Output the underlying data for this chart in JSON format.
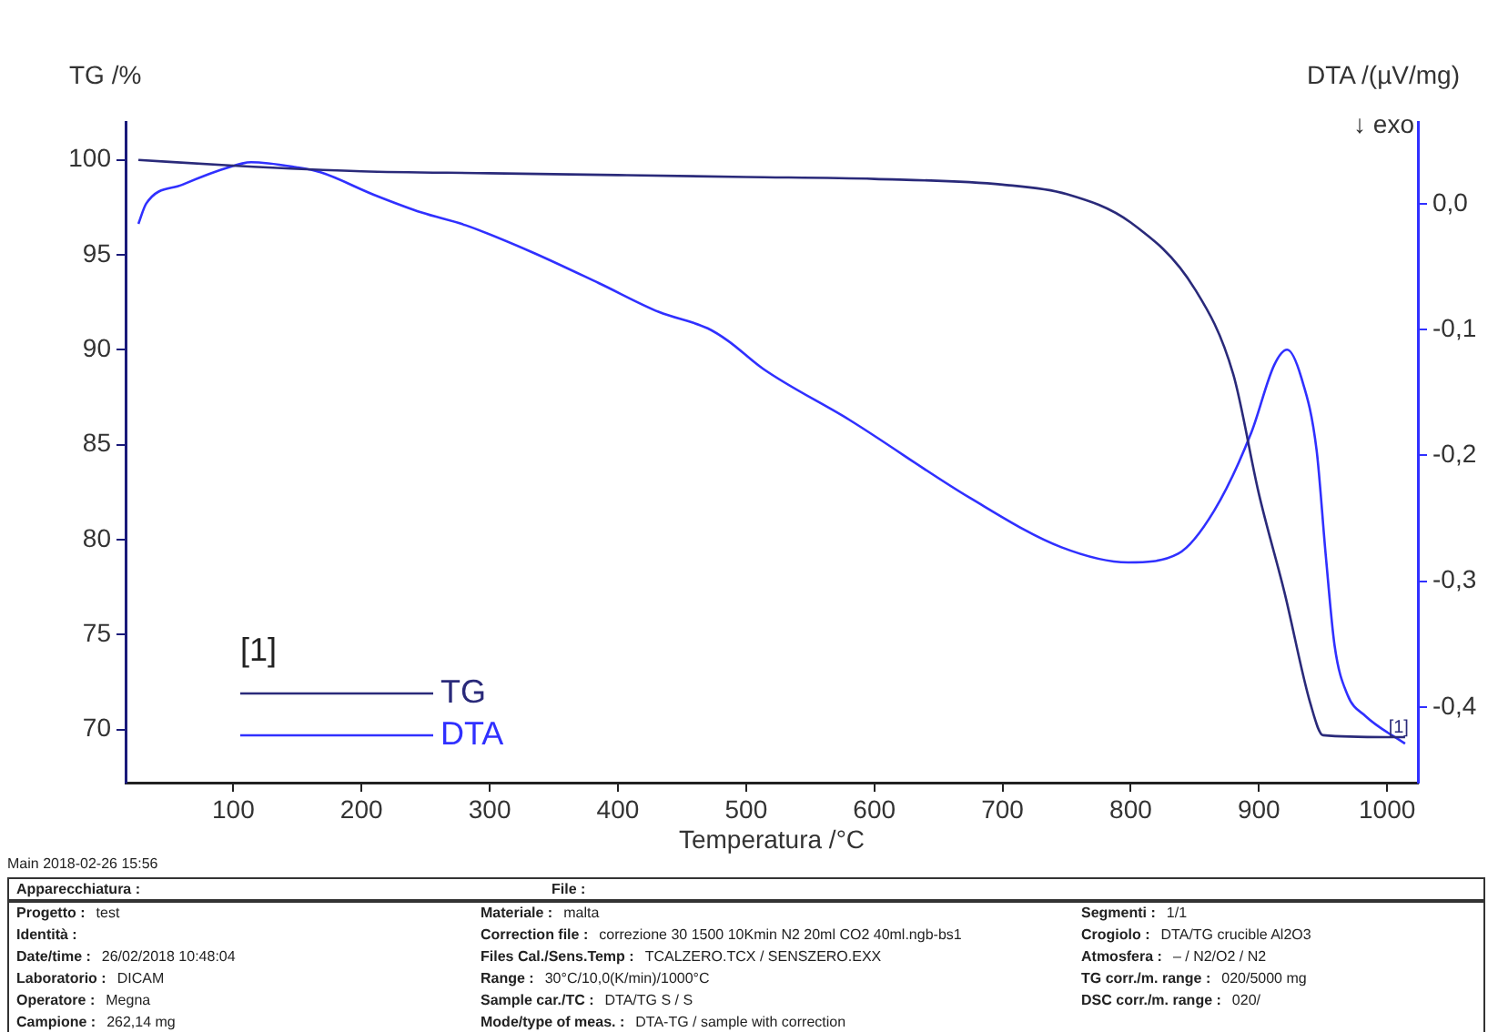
{
  "chart_data": {
    "type": "line",
    "xlabel": "Temperatura /°C",
    "ylabel": "TG /%",
    "y2label": "DTA /(µV/mg)",
    "legend_title": "[1]",
    "legend": "bottom left",
    "marker": "none",
    "line_style": "solid",
    "xlim": [
      16,
      1024
    ],
    "xticks": [
      100,
      200,
      300,
      400,
      500,
      600,
      700,
      800,
      900,
      1000
    ],
    "ylim": [
      67.2,
      102
    ],
    "yticks": [
      70,
      75,
      80,
      85,
      90,
      95,
      100
    ],
    "y2lim": [
      -0.46,
      0.065
    ],
    "y2ticks": [
      {
        "value": -0.4,
        "label": "-0,4"
      },
      {
        "value": -0.3,
        "label": "-0,3"
      },
      {
        "value": -0.2,
        "label": "-0,2"
      },
      {
        "value": -0.1,
        "label": "-0,1"
      },
      {
        "value": 0,
        "label": "0,0"
      }
    ],
    "series": [
      {
        "name": "TG",
        "color": "#2a2a7a",
        "x": [
          26,
          100,
          200,
          300,
          400,
          500,
          600,
          700,
          750,
          800,
          850,
          880,
          900,
          920,
          940,
          950,
          1000,
          1014
        ],
        "values": [
          100,
          99.7,
          99.4,
          99.3,
          99.2,
          99.1,
          99.0,
          98.7,
          98.2,
          96.7,
          93.2,
          88.7,
          82.4,
          77.2,
          71.4,
          69.7,
          69.6,
          69.6
        ]
      },
      {
        "name": "DTA",
        "color": "#3030ff",
        "axis": "y2",
        "x": [
          26,
          32,
          60,
          107,
          114,
          149,
          168,
          210,
          247,
          281,
          332,
          385,
          432,
          470,
          486,
          513,
          581,
          675,
          746,
          798,
          837,
          865,
          894,
          912,
          922,
          933,
          945,
          952,
          959,
          969,
          983,
          1014
        ],
        "values": [
          -0.016,
          0.0,
          0.015,
          0.032,
          0.033,
          0.029,
          0.025,
          0.007,
          -0.007,
          -0.017,
          -0.038,
          -0.063,
          -0.086,
          -0.099,
          -0.109,
          -0.131,
          -0.172,
          -0.234,
          -0.273,
          -0.285,
          -0.278,
          -0.244,
          -0.182,
          -0.128,
          -0.116,
          -0.138,
          -0.196,
          -0.278,
          -0.351,
          -0.39,
          -0.407,
          -0.429
        ]
      }
    ],
    "annotations": [
      "↓ exo",
      {
        "text": "[1]",
        "x": 1014,
        "y": 69.6
      },
      "Main 2018-02-26 15:56",
      "Apparecchiatura :",
      "File :",
      "Progetto : test",
      "Identità :",
      "Date/time : 26/02/2018 10:48:04",
      "Laboratorio : DICAM",
      "Operatore : Megna",
      "Campione : 262,14 mg",
      "Materiale : malta",
      "Correction file : correzione 30 1500 10Kmin N2 20ml CO2 40ml.ngb-bs1",
      "Files Cal./Sens.Temp : TCALZERO.TCX / SENSZERO.EXX",
      "Range : 30°C/10,0(K/min)/1000°C",
      "Sample car./TC : DTA/TG S / S",
      "Mode/type of meas. : DTA-TG / sample with correction",
      "Segmenti : 1/1",
      "Crogiolo : DTA/TG crucible Al2O3",
      "Atmosfera : – / N2/O2 / N2",
      "TG corr./m. range : 020/5000 mg",
      "DSC corr./m. range : 020/"
    ]
  }
}
